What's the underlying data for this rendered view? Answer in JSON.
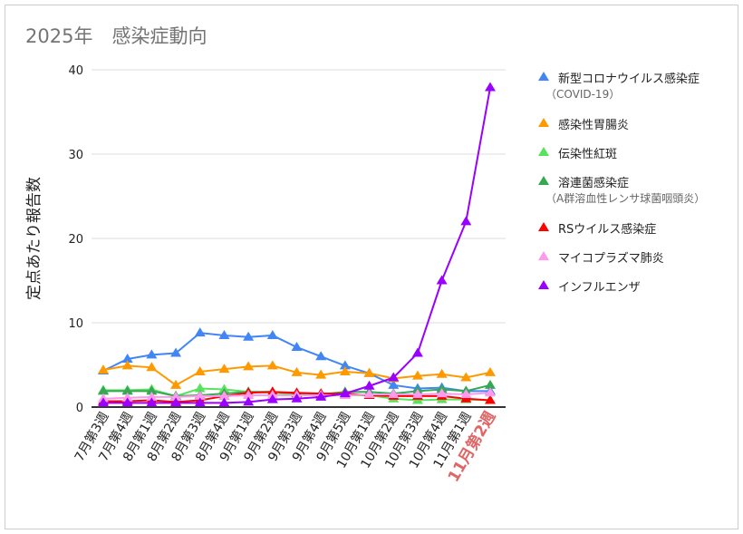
{
  "title": "2025年　感染症動向",
  "chart_data": {
    "type": "line",
    "title": "2025年　感染症動向",
    "xlabel": "",
    "ylabel": "定点あたり報告数",
    "ylim": [
      0,
      40
    ],
    "yticks": [
      "0",
      "10",
      "20",
      "30",
      "40"
    ],
    "grid": true,
    "legend": "right",
    "categories": [
      "7月第3週",
      "7月第4週",
      "8月第1週",
      "8月第2週",
      "8月第3週",
      "8月第4週",
      "9月第1週",
      "9月第2週",
      "9月第3週",
      "9月第4週",
      "9月第5週",
      "10月第1週",
      "10月第2週",
      "10月第3週",
      "10月第4週",
      "11月第1週",
      "11月第2週"
    ],
    "highlight_category_color": "#e06666",
    "series": [
      {
        "name": "新型コロナウイルス感染症",
        "sub": "（COVID-19）",
        "color": "#4285f4",
        "values": [
          4.3,
          5.7,
          6.2,
          6.4,
          8.8,
          8.5,
          8.3,
          8.5,
          7.1,
          6.0,
          4.9,
          4.0,
          2.6,
          2.2,
          2.3,
          1.9,
          1.9
        ]
      },
      {
        "name": "感染性胃腸炎",
        "color": "#ff9900",
        "values": [
          4.4,
          4.9,
          4.7,
          2.6,
          4.2,
          4.5,
          4.8,
          4.9,
          4.1,
          3.8,
          4.2,
          4.0,
          3.4,
          3.7,
          3.9,
          3.5,
          4.1
        ]
      },
      {
        "name": "伝染性紅斑",
        "color": "#57e35c",
        "values": [
          2.0,
          2.0,
          2.1,
          1.3,
          2.2,
          2.1,
          1.8,
          1.7,
          1.5,
          1.4,
          1.4,
          1.4,
          1.0,
          0.8,
          0.9,
          0.9,
          0.8
        ]
      },
      {
        "name": "溶連菌感染症",
        "sub": "（A群溶血性レンサ球菌咽頭炎）",
        "color": "#34a853",
        "values": [
          1.9,
          1.9,
          1.9,
          1.3,
          1.4,
          1.6,
          1.8,
          1.8,
          1.6,
          1.5,
          1.8,
          1.8,
          1.6,
          1.9,
          2.1,
          1.9,
          2.6
        ]
      },
      {
        "name": "RSウイルス感染症",
        "color": "#ff0000",
        "values": [
          0.7,
          0.7,
          0.8,
          0.6,
          0.8,
          1.3,
          1.7,
          1.8,
          1.7,
          1.6,
          1.6,
          1.4,
          1.3,
          1.3,
          1.3,
          1.0,
          0.8
        ]
      },
      {
        "name": "マイコプラズマ肺炎",
        "color": "#ff99ee",
        "values": [
          1.0,
          1.1,
          1.2,
          1.2,
          1.3,
          1.3,
          1.4,
          1.4,
          1.4,
          1.4,
          1.4,
          1.5,
          1.5,
          1.5,
          1.6,
          1.5,
          1.7
        ]
      },
      {
        "name": "インフルエンザ",
        "color": "#9900ff",
        "values": [
          0.5,
          0.5,
          0.5,
          0.5,
          0.5,
          0.5,
          0.6,
          0.9,
          1.0,
          1.2,
          1.6,
          2.5,
          3.5,
          6.4,
          15,
          22,
          37.9
        ]
      }
    ]
  }
}
